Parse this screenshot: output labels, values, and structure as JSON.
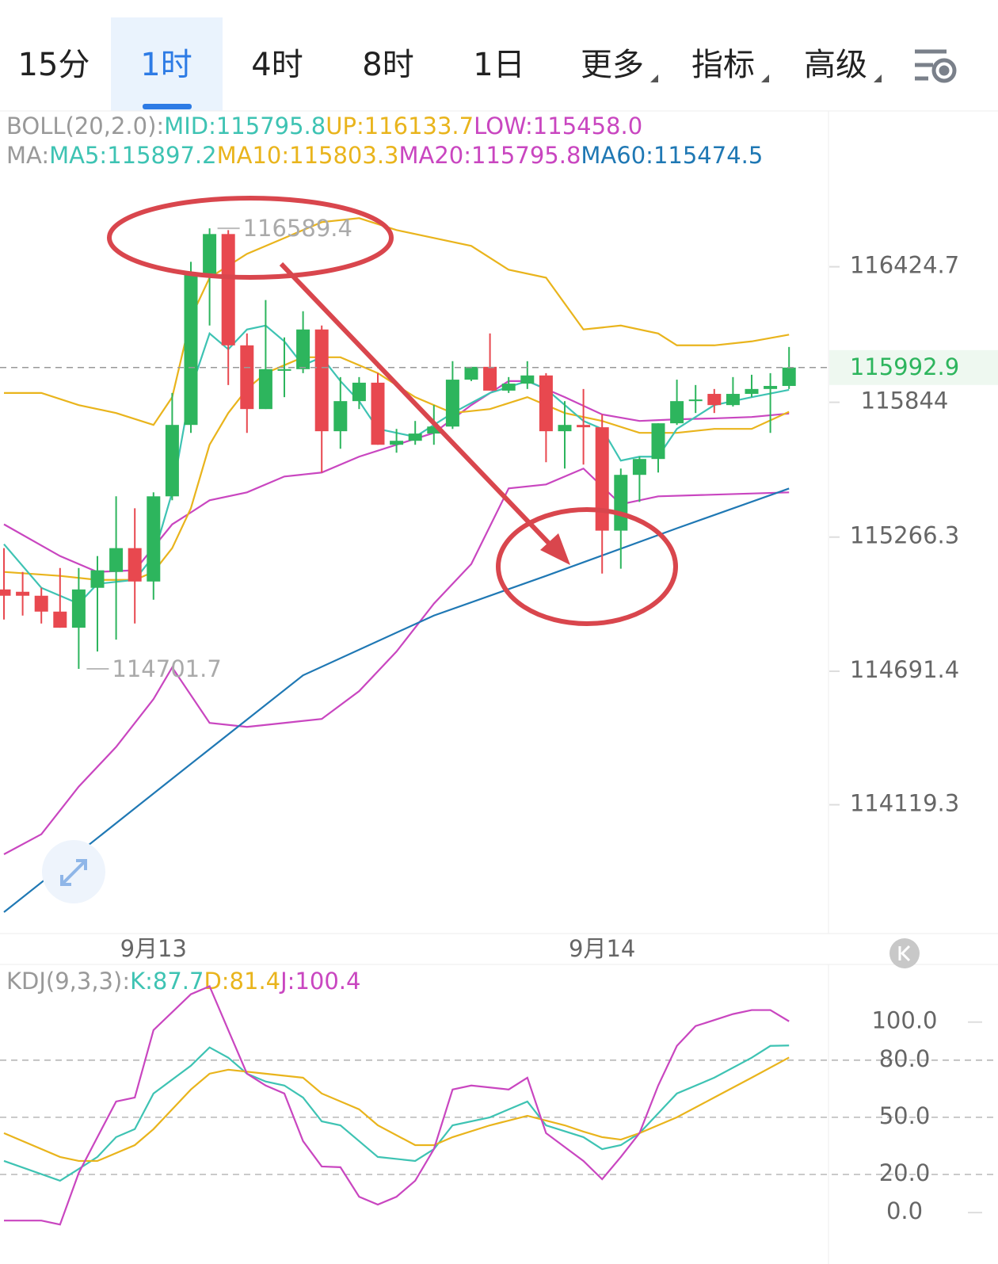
{
  "tabs": [
    "15分",
    "1时",
    "4时",
    "8时",
    "1日",
    "更多",
    "指标",
    "高级"
  ],
  "chart_data": [
    {
      "type": "candlestick",
      "legend": [
        {
          "label": "BOLL(20,2.0):",
          "items": [
            {
              "text": "MID:115795.8",
              "color": "#3ec3b3"
            },
            {
              "text": "UP:116133.7",
              "color": "#e9b41c"
            },
            {
              "text": "LOW:115458.0",
              "color": "#c946c0"
            }
          ]
        },
        {
          "label": "MA:",
          "items": [
            {
              "text": "MA5:115897.2",
              "color": "#3ec3b3"
            },
            {
              "text": "MA10:115803.3",
              "color": "#e9b41c"
            },
            {
              "text": "MA20:115795.8",
              "color": "#c946c0"
            },
            {
              "text": "MA60:115474.5",
              "color": "#1f78b4"
            }
          ]
        }
      ],
      "xticks": [
        {
          "value": 8,
          "label": "9月13"
        },
        {
          "value": 32,
          "label": "9月14"
        }
      ],
      "ylim": [
        113577.6,
        117092.5
      ],
      "yticks": [
        116424.7,
        115844.0,
        115266.3,
        114691.4,
        114119.3
      ],
      "up_color": "#2db55d",
      "down_color": "#e8484f",
      "open": [
        115042,
        115032,
        115015,
        114947,
        114878,
        115049,
        115117,
        115219,
        115076,
        115441,
        115747,
        116395,
        116565,
        116088,
        115815,
        115979,
        115986,
        116156,
        115720,
        115849,
        115928,
        115662,
        115679,
        115710,
        115740,
        115941,
        115996,
        115894,
        115924,
        115959,
        115720,
        115747,
        115737,
        115294,
        115533,
        115601,
        115754,
        115849,
        115880,
        115832,
        115880,
        115901,
        115914
      ],
      "high": [
        115219,
        115117,
        115049,
        115134,
        115134,
        115185,
        115441,
        115390,
        115458,
        115884,
        116446,
        116589.4,
        116582,
        116139,
        116282,
        116122,
        116234,
        116173,
        115952,
        115952,
        115969,
        115730,
        115764,
        115832,
        116020,
        115996,
        116139,
        115952,
        116020,
        115969,
        115849,
        115901,
        115792,
        115560,
        115611,
        115754,
        115941,
        115918,
        115901,
        115952,
        115962,
        115969,
        116081
      ],
      "low": [
        114913,
        114930,
        114896,
        114878,
        114701.7,
        114776,
        114827,
        114896,
        114998,
        115424,
        115713,
        116173,
        115918,
        115713,
        115815,
        115866,
        115969,
        115543,
        115645,
        115815,
        115662,
        115628,
        115662,
        115662,
        115730,
        115935,
        115894,
        115884,
        115901,
        115587,
        115560,
        115577,
        115110,
        115131,
        115417,
        115543,
        115747,
        115798,
        115798,
        115826,
        115866,
        115713,
        115901
      ],
      "close": [
        115015,
        115015,
        114947,
        114878,
        115042,
        115124,
        115219,
        115076,
        115441,
        115747,
        116395,
        116565,
        116088,
        115815,
        115986,
        115986,
        116156,
        115720,
        115849,
        115928,
        115662,
        115679,
        115710,
        115740,
        115941,
        115996,
        115894,
        115924,
        115959,
        115720,
        115747,
        115737,
        115294,
        115533,
        115601,
        115754,
        115849,
        115856,
        115832,
        115880,
        115901,
        115914,
        115992.9
      ],
      "series": [
        {
          "name": "UP",
          "color": "#e9b41c",
          "x": [
            0,
            2,
            4,
            6,
            8,
            9,
            10,
            11,
            13,
            15,
            17,
            19,
            21,
            23,
            25,
            27,
            29,
            31,
            33,
            35,
            36,
            38,
            40,
            42
          ],
          "values": [
            115884,
            115884,
            115832,
            115798,
            115747,
            115866,
            116207,
            116378,
            116480,
            116548,
            116616,
            116633,
            116582,
            116548,
            116514,
            116412,
            116378,
            116156,
            116173,
            116139,
            116088,
            116088,
            116105,
            116133.7
          ]
        },
        {
          "name": "LOW",
          "color": "#c946c0",
          "x": [
            0,
            2,
            4,
            6,
            8,
            9,
            11,
            13,
            15,
            17,
            19,
            21,
            23,
            25,
            27,
            29,
            31,
            33,
            35,
            42
          ],
          "values": [
            113907,
            113993,
            114197,
            114367,
            114572,
            114708,
            114470,
            114453,
            114470,
            114487,
            114606,
            114776,
            114981,
            115151,
            115475,
            115492,
            115560,
            115407,
            115441,
            115458.0
          ]
        },
        {
          "name": "MA20",
          "color": "#c946c0",
          "x": [
            0,
            3,
            5,
            7,
            9,
            10,
            11,
            13,
            15,
            17,
            19,
            21,
            23,
            25,
            27,
            28,
            30,
            32,
            34,
            36,
            38,
            40,
            42
          ],
          "values": [
            115321,
            115185,
            115117,
            115124,
            115321,
            115372,
            115424,
            115458,
            115526,
            115543,
            115611,
            115662,
            115713,
            115832,
            115935,
            115935,
            115866,
            115792,
            115764,
            115771,
            115775,
            115781,
            115795.8
          ]
        },
        {
          "name": "MA60",
          "color": "#1f78b4",
          "x": [
            0,
            9,
            16,
            23,
            29,
            36,
            42
          ],
          "values": [
            113659,
            114231,
            114674,
            114930,
            115100,
            115304,
            115474.5
          ]
        },
        {
          "name": "MA10",
          "color": "#e9b41c",
          "x": [
            0,
            3,
            5,
            7,
            8,
            9,
            10,
            11,
            12,
            13,
            14,
            15,
            16,
            18,
            20,
            22,
            24,
            26,
            28,
            30,
            32,
            34,
            36,
            38,
            40,
            42
          ],
          "values": [
            115117,
            115100,
            115083,
            115083,
            115117,
            115219,
            115390,
            115662,
            115798,
            115901,
            115969,
            116003,
            116037,
            116037,
            115969,
            115866,
            115798,
            115815,
            115866,
            115798,
            115764,
            115713,
            115713,
            115730,
            115730,
            115803.3
          ]
        },
        {
          "name": "MA5",
          "color": "#3ec3b3",
          "x": [
            0,
            2,
            4,
            5,
            7,
            8,
            9,
            10,
            11,
            12,
            13,
            14,
            15,
            16,
            17,
            18,
            19,
            20,
            22,
            24,
            26,
            28,
            29,
            31,
            32,
            33,
            34,
            35,
            36,
            38,
            40,
            42
          ],
          "values": [
            115236,
            115049,
            114981,
            115066,
            115083,
            115185,
            115458,
            115901,
            116139,
            116071,
            116156,
            116173,
            116105,
            116003,
            116037,
            115935,
            115849,
            115730,
            115696,
            115798,
            115884,
            115935,
            115901,
            115764,
            115730,
            115594,
            115611,
            115611,
            115730,
            115832,
            115866,
            115897.2
          ]
        }
      ]
    },
    {
      "type": "line",
      "legend": [
        {
          "label": "KDJ(9,3,3):",
          "items": [
            {
              "text": "K:87.7",
              "color": "#3ec3b3"
            },
            {
              "text": "D:81.4",
              "color": "#e9b41c"
            },
            {
              "text": "J:100.4",
              "color": "#c946c0"
            }
          ]
        }
      ],
      "ylim": [
        -27,
        129
      ],
      "yticks": [
        {
          "value": 100,
          "label": "100.0"
        },
        {
          "value": 80,
          "label": "80.0"
        },
        {
          "value": 50,
          "label": "50.0"
        },
        {
          "value": 20,
          "label": "20.0"
        },
        {
          "value": 0,
          "label": "0.0"
        }
      ],
      "series": [
        {
          "name": "K",
          "color": "#3ec3b3",
          "x": [
            0,
            3,
            4,
            5,
            6,
            7,
            8,
            10,
            11,
            12,
            13,
            14,
            15,
            16,
            17,
            18,
            19,
            20,
            22,
            23,
            24,
            26,
            28,
            29,
            31,
            32,
            33,
            34,
            35,
            36,
            38,
            40,
            41,
            42
          ],
          "values": [
            27.1,
            16.7,
            22.9,
            29.2,
            39.6,
            43.8,
            62.5,
            77.1,
            86.7,
            81.3,
            72.9,
            68.8,
            66.7,
            60.4,
            47.9,
            45.8,
            37.5,
            29.2,
            27.1,
            33.3,
            45.8,
            50.0,
            58.3,
            45.8,
            39.6,
            33.3,
            35.4,
            41.7,
            52.1,
            62.5,
            70.8,
            81.3,
            87.5,
            87.7
          ]
        },
        {
          "name": "D",
          "color": "#e9b41c",
          "x": [
            0,
            3,
            4,
            5,
            7,
            8,
            10,
            11,
            12,
            14,
            16,
            17,
            19,
            20,
            22,
            23,
            24,
            26,
            28,
            30,
            31,
            32,
            33,
            34,
            36,
            38,
            40,
            42
          ],
          "values": [
            41.7,
            29.2,
            27.1,
            27.1,
            35.4,
            43.8,
            64.6,
            72.9,
            75.0,
            72.9,
            70.8,
            62.5,
            54.2,
            45.8,
            35.4,
            35.4,
            39.6,
            45.8,
            50.8,
            45.8,
            42.5,
            39.6,
            38.3,
            41.7,
            50.0,
            60.4,
            70.8,
            81.4
          ]
        },
        {
          "name": "J",
          "color": "#c946c0",
          "x": [
            0,
            2,
            3,
            4,
            5,
            6,
            7,
            8,
            10,
            11,
            12,
            13,
            14,
            15,
            16,
            17,
            18,
            19,
            20,
            21,
            22,
            23,
            24,
            25,
            27,
            28,
            29,
            31,
            32,
            33,
            34,
            35,
            36,
            37,
            39,
            40,
            41,
            42
          ],
          "values": [
            -4.2,
            -4.2,
            -6.3,
            20.8,
            39.6,
            58.3,
            60.4,
            95.8,
            114.6,
            118.8,
            95.8,
            72.9,
            66.7,
            62.5,
            37.5,
            24.2,
            23.8,
            8.3,
            4.2,
            8.3,
            16.7,
            33.3,
            64.6,
            66.7,
            64.6,
            70.8,
            41.7,
            27.1,
            17.5,
            29.2,
            41.7,
            66.7,
            87.5,
            97.9,
            104.2,
            106.3,
            106.3,
            100.4
          ]
        }
      ]
    }
  ]
}
